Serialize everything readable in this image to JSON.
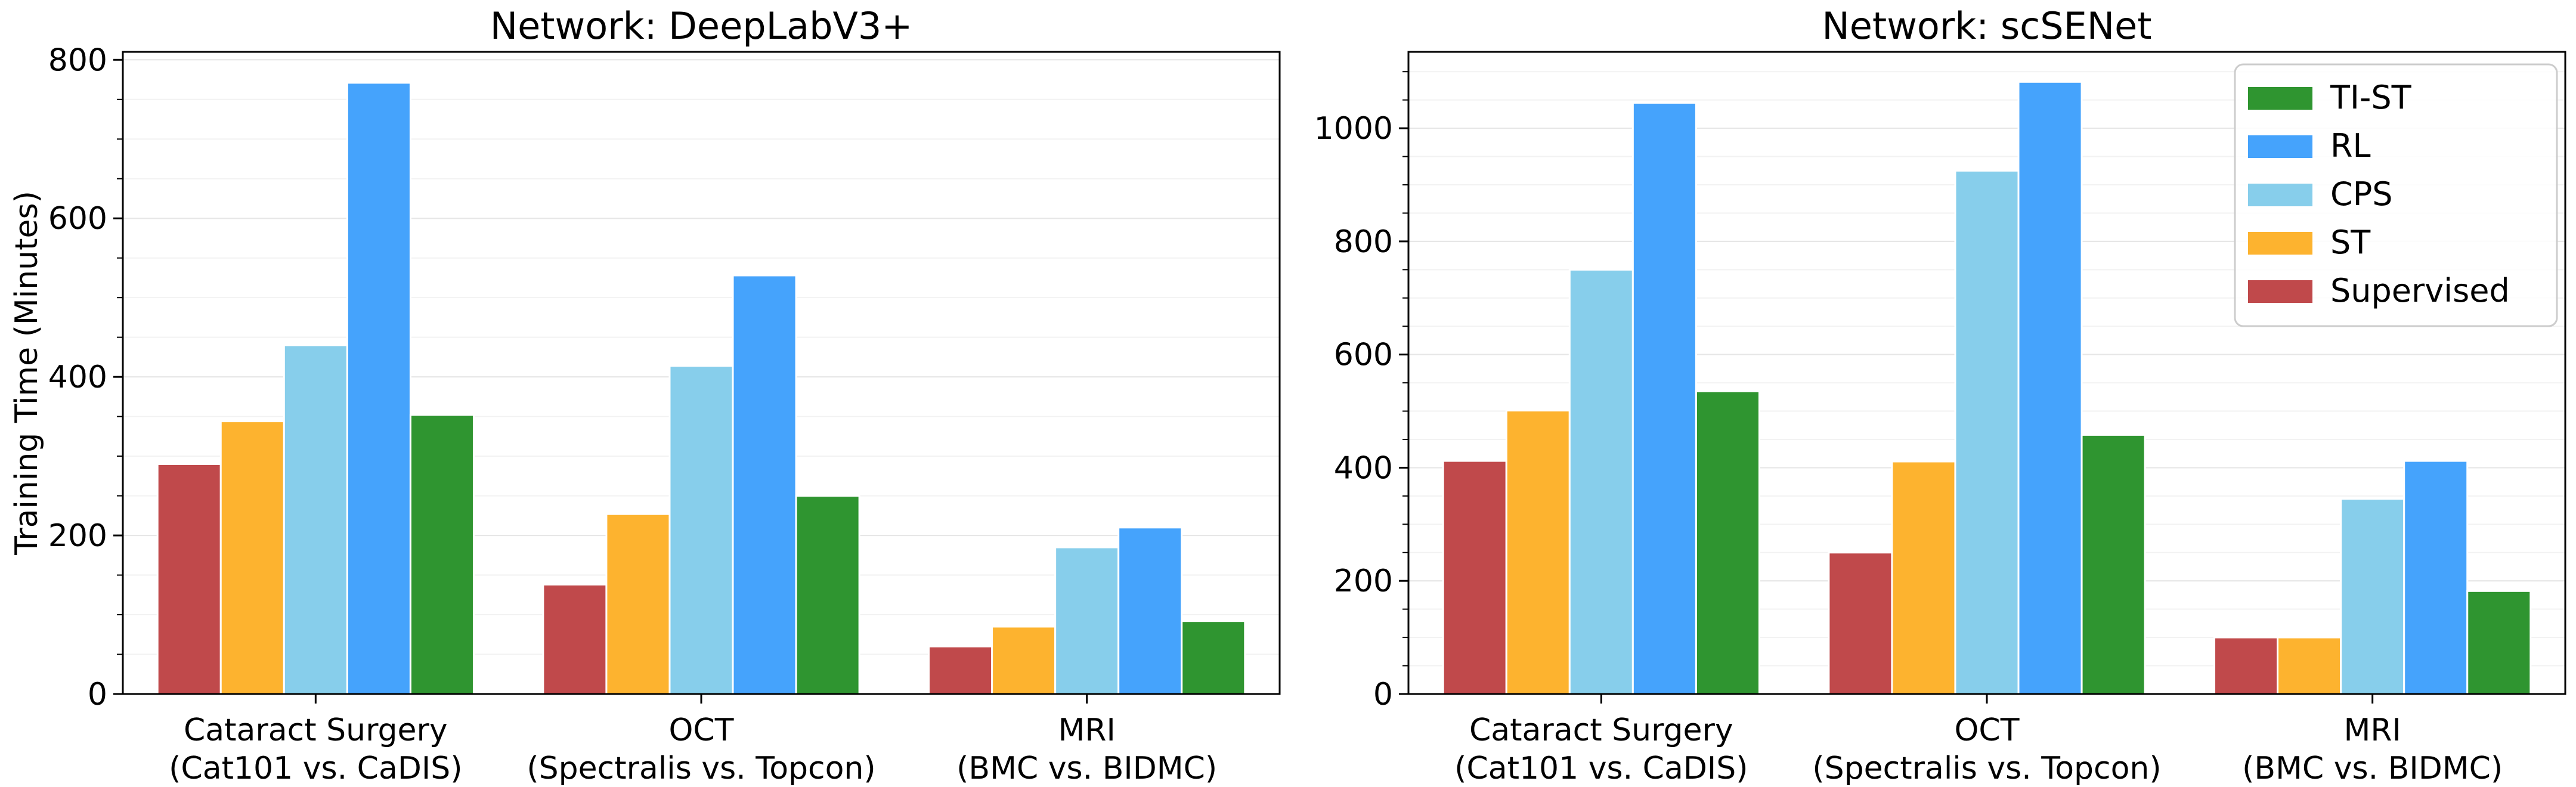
{
  "chart_data": [
    {
      "type": "bar",
      "title": "Network: DeepLabV3+",
      "xlabel": "",
      "ylabel": "Training Time (Minutes)",
      "ylim": [
        0,
        810
      ],
      "yticks": [
        0,
        200,
        400,
        600,
        800
      ],
      "grid": true,
      "legend": null,
      "categories": [
        [
          "Cataract Surgery",
          "(Cat101 vs. CaDIS)"
        ],
        [
          "OCT",
          "(Spectralis vs. Topcon)"
        ],
        [
          "MRI",
          "(BMC vs. BIDMC)"
        ]
      ],
      "series": [
        {
          "name": "Supervised",
          "color": "#c0494b",
          "values": [
            290,
            138,
            60
          ]
        },
        {
          "name": "ST",
          "color": "#fdb32f",
          "values": [
            344,
            227,
            85
          ]
        },
        {
          "name": "CPS",
          "color": "#87ceeb",
          "values": [
            440,
            414,
            185
          ]
        },
        {
          "name": "RL",
          "color": "#45a3fc",
          "values": [
            771,
            528,
            210
          ]
        },
        {
          "name": "TI-ST",
          "color": "#2f9530",
          "values": [
            352,
            250,
            92
          ]
        }
      ]
    },
    {
      "type": "bar",
      "title": "Network: scSENet",
      "xlabel": "",
      "ylabel": "",
      "ylim": [
        0,
        1135
      ],
      "yticks": [
        0,
        200,
        400,
        600,
        800,
        1000
      ],
      "grid": true,
      "legend": "top-right",
      "categories": [
        [
          "Cataract Surgery",
          "(Cat101 vs. CaDIS)"
        ],
        [
          "OCT",
          "(Spectralis vs. Topcon)"
        ],
        [
          "MRI",
          "(BMC vs. BIDMC)"
        ]
      ],
      "series": [
        {
          "name": "Supervised",
          "color": "#c0494b",
          "values": [
            412,
            250,
            100
          ]
        },
        {
          "name": "ST",
          "color": "#fdb32f",
          "values": [
            501,
            411,
            100
          ]
        },
        {
          "name": "CPS",
          "color": "#87ceeb",
          "values": [
            750,
            925,
            345
          ]
        },
        {
          "name": "RL",
          "color": "#45a3fc",
          "values": [
            1045,
            1082,
            412
          ]
        },
        {
          "name": "TI-ST",
          "color": "#2f9530",
          "values": [
            535,
            458,
            182
          ]
        }
      ]
    }
  ]
}
